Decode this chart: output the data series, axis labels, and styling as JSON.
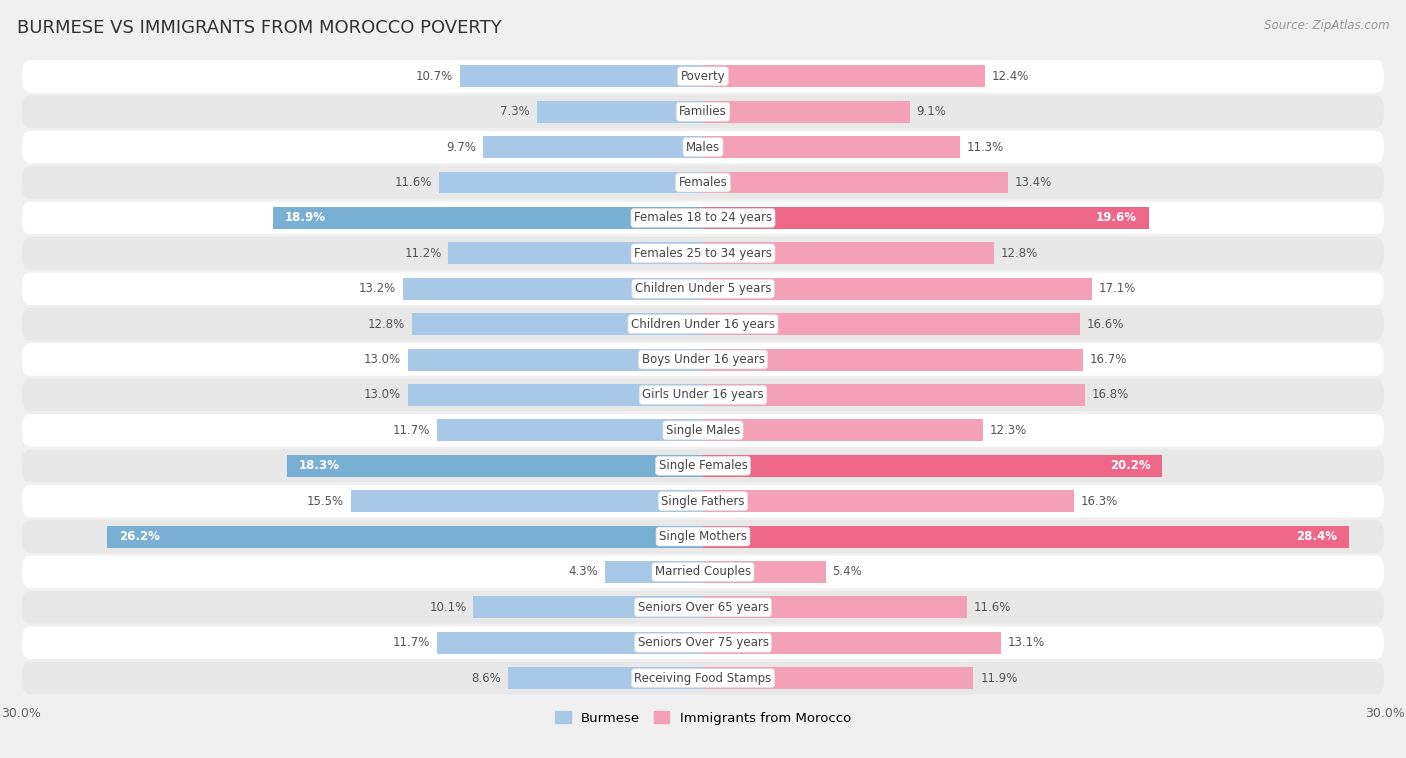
{
  "title": "BURMESE VS IMMIGRANTS FROM MOROCCO POVERTY",
  "source": "Source: ZipAtlas.com",
  "categories": [
    "Poverty",
    "Families",
    "Males",
    "Females",
    "Females 18 to 24 years",
    "Females 25 to 34 years",
    "Children Under 5 years",
    "Children Under 16 years",
    "Boys Under 16 years",
    "Girls Under 16 years",
    "Single Males",
    "Single Females",
    "Single Fathers",
    "Single Mothers",
    "Married Couples",
    "Seniors Over 65 years",
    "Seniors Over 75 years",
    "Receiving Food Stamps"
  ],
  "burmese": [
    10.7,
    7.3,
    9.7,
    11.6,
    18.9,
    11.2,
    13.2,
    12.8,
    13.0,
    13.0,
    11.7,
    18.3,
    15.5,
    26.2,
    4.3,
    10.1,
    11.7,
    8.6
  ],
  "morocco": [
    12.4,
    9.1,
    11.3,
    13.4,
    19.6,
    12.8,
    17.1,
    16.6,
    16.7,
    16.8,
    12.3,
    20.2,
    16.3,
    28.4,
    5.4,
    11.6,
    13.1,
    11.9
  ],
  "burmese_color": "#a8c8e8",
  "morocco_color": "#f4a0b8",
  "burmese_highlight_color": "#7aafd4",
  "morocco_highlight_color": "#ee6688",
  "highlight_rows": [
    4,
    11,
    13
  ],
  "xlim": 30.0,
  "bg_color": "#f0f0f0",
  "row_color_even": "#ffffff",
  "row_color_odd": "#e8e8e8",
  "title_fontsize": 13,
  "value_fontsize": 8.5,
  "cat_fontsize": 8.5,
  "legend_label_burmese": "Burmese",
  "legend_label_morocco": "Immigrants from Morocco"
}
